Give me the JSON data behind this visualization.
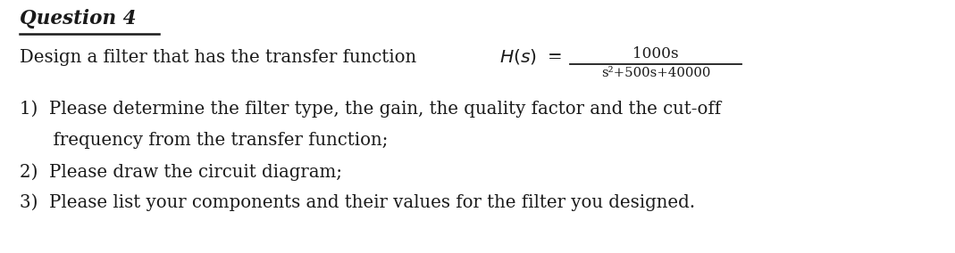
{
  "title": "Question 4",
  "bg_color": "#ffffff",
  "text_color": "#1a1a1a",
  "title_fontsize": 15.5,
  "body_fontsize": 14.2,
  "numerator": "1000s",
  "denominator": "s²+500s+40000",
  "line_plain": "Design a filter that has the transfer function ",
  "item1a": "1)  Please determine the filter type, the gain, the quality factor and the cut-off",
  "item1b": "      frequency from the transfer function;",
  "item2": "2)  Please draw the circuit diagram;",
  "item3": "3)  Please list your components and their values for the filter you designed."
}
